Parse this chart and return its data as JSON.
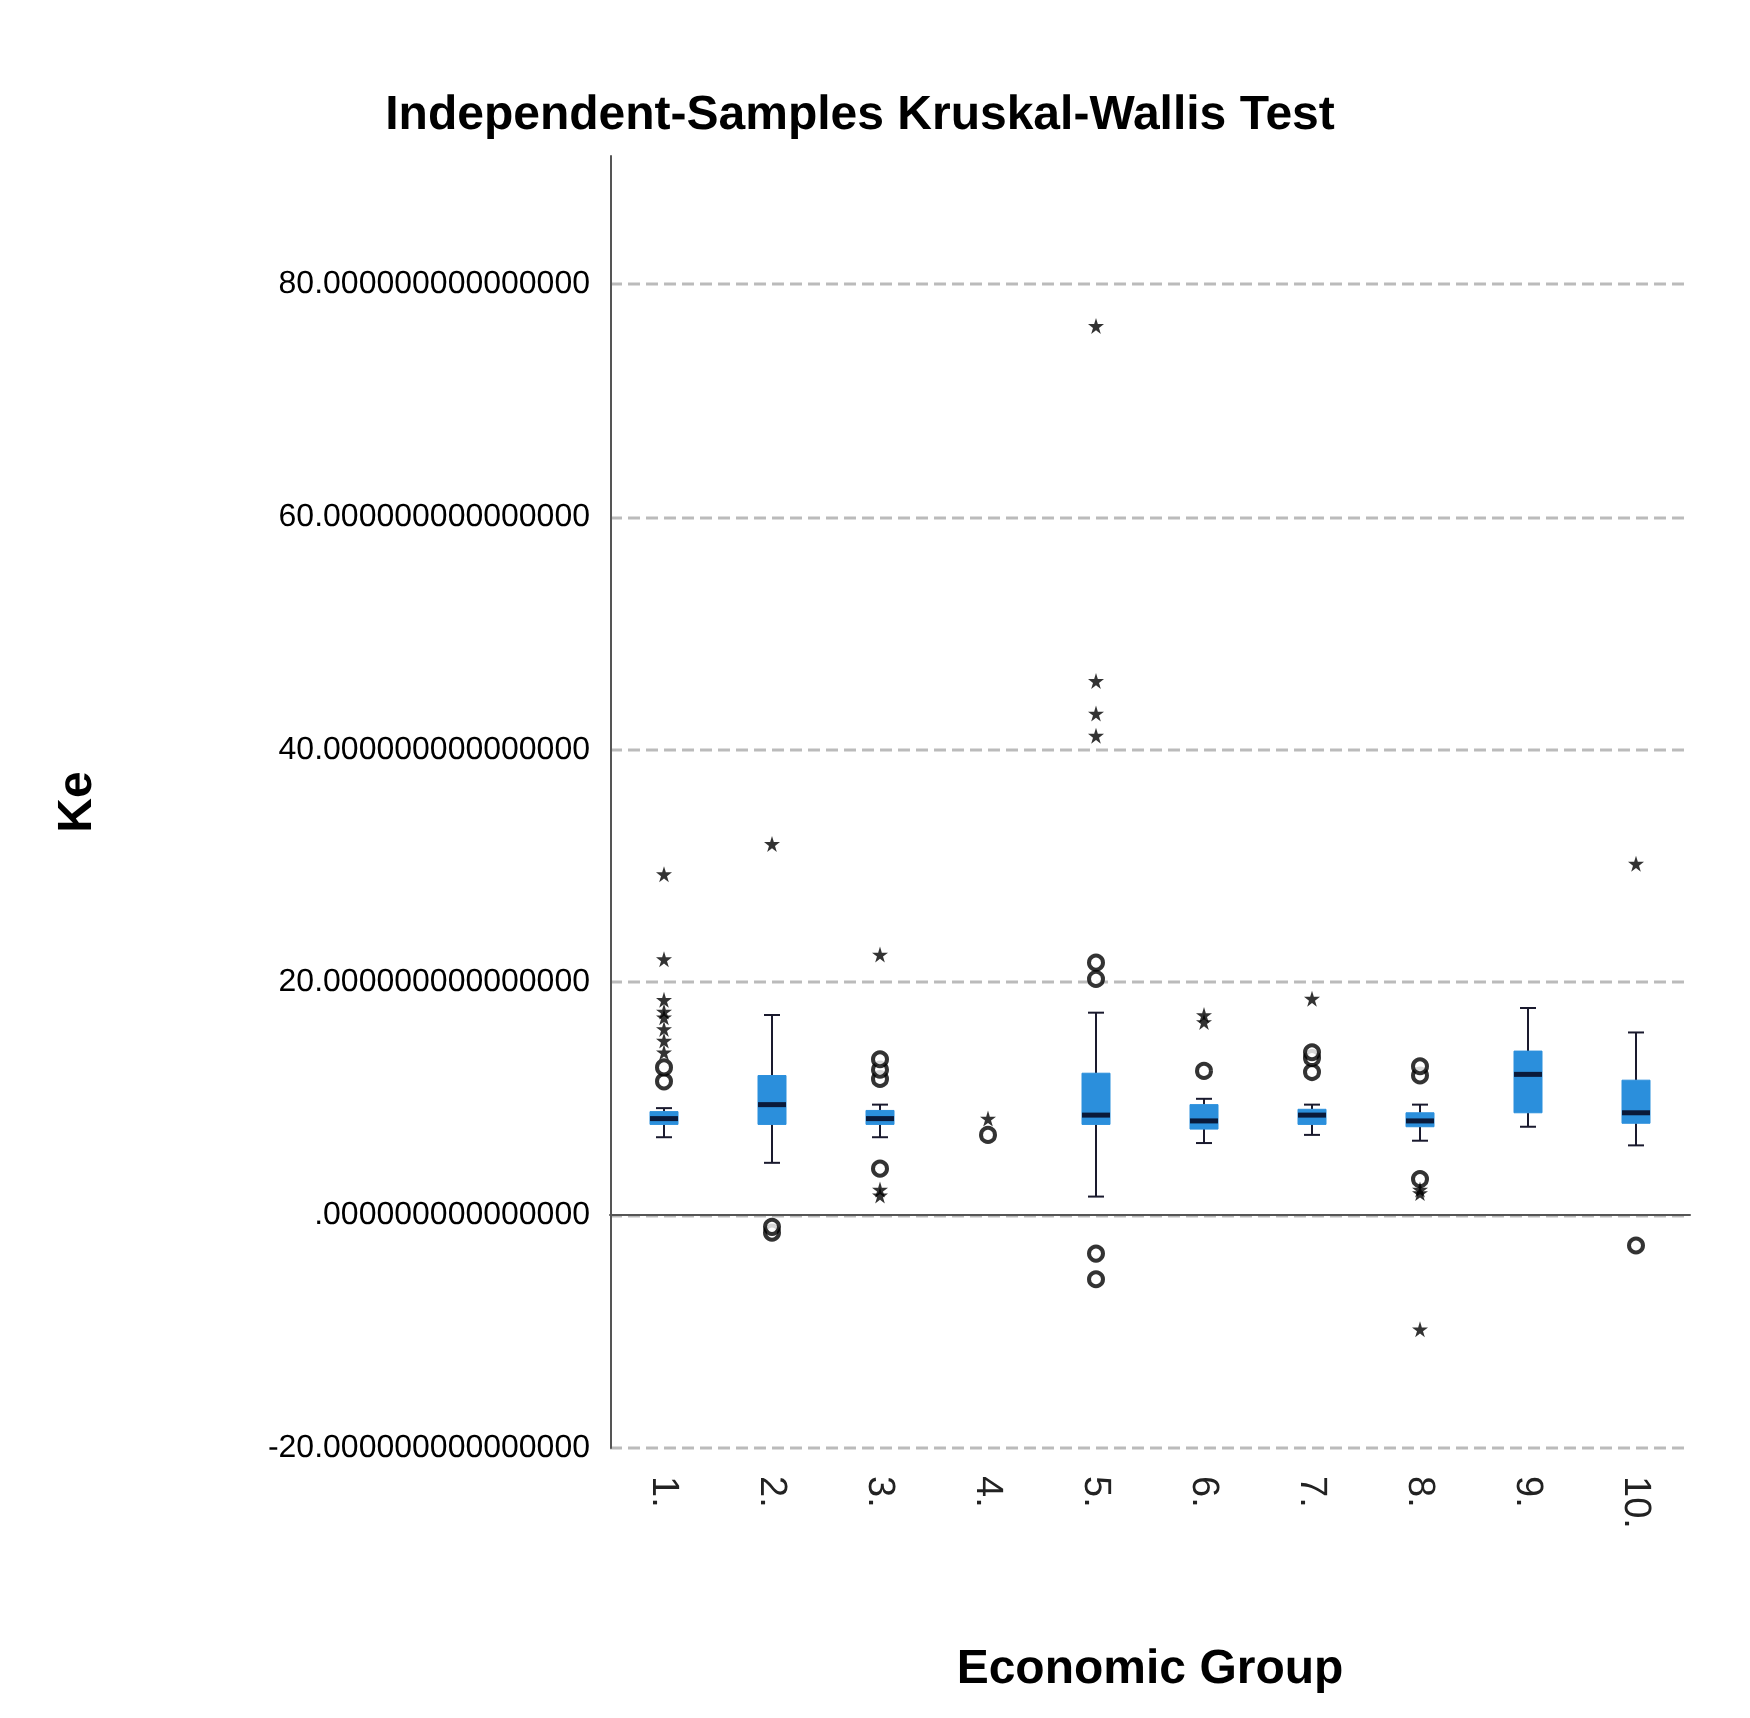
{
  "chart_data": {
    "type": "box",
    "title": "Independent-Samples Kruskal-Wallis Test",
    "xlabel": "Economic Group",
    "ylabel": "Ke",
    "categories": [
      "1.",
      "2.",
      "3.",
      "4.",
      "5.",
      "6.",
      "7.",
      "8.",
      "9.",
      "10."
    ],
    "color": "#2b8fdc",
    "boxes": [
      {
        "low": 6.7,
        "q1": 7.8,
        "median": 8.3,
        "q3": 8.9,
        "high": 9.2
      },
      {
        "low": 4.5,
        "q1": 7.8,
        "median": 9.5,
        "q3": 12.0,
        "high": 17.2
      },
      {
        "low": 6.7,
        "q1": 7.8,
        "median": 8.3,
        "q3": 9.0,
        "high": 9.5
      },
      null,
      {
        "low": 1.6,
        "q1": 7.8,
        "median": 8.6,
        "q3": 12.2,
        "high": 17.4
      },
      {
        "low": 6.2,
        "q1": 7.4,
        "median": 8.1,
        "q3": 9.5,
        "high": 10.0
      },
      {
        "low": 6.9,
        "q1": 7.8,
        "median": 8.6,
        "q3": 9.1,
        "high": 9.5
      },
      {
        "low": 6.4,
        "q1": 7.6,
        "median": 8.1,
        "q3": 8.8,
        "high": 9.5
      },
      {
        "low": 7.6,
        "q1": 8.8,
        "median": 12.1,
        "q3": 14.1,
        "high": 17.8
      },
      {
        "low": 6.0,
        "q1": 7.9,
        "median": 8.8,
        "q3": 11.6,
        "high": 15.7
      }
    ],
    "series": [
      {
        "type": "scatter",
        "marker": "circle",
        "color": "#000000",
        "x": [
          "1.",
          "1.",
          "2.",
          "2.",
          "3.",
          "3.",
          "3.",
          "3.",
          "4.",
          "5.",
          "5.",
          "5.",
          "5.",
          "6.",
          "7.",
          "7.",
          "7.",
          "8.",
          "8.",
          "8.",
          "10."
        ],
        "values": [
          11.5,
          12.7,
          -1.5,
          -1.0,
          4.0,
          11.7,
          12.5,
          13.4,
          6.9,
          21.7,
          20.3,
          -3.3,
          -5.5,
          12.4,
          12.3,
          13.5,
          14.0,
          3.1,
          12.0,
          12.8,
          -2.6
        ]
      },
      {
        "type": "scatter",
        "marker": "star",
        "color": "#000000",
        "x": [
          "1.",
          "1.",
          "1.",
          "1.",
          "1.",
          "1.",
          "1.",
          "1.",
          "2.",
          "3.",
          "3.",
          "3.",
          "4.",
          "5.",
          "5.",
          "5.",
          "5.",
          "6.",
          "6.",
          "7.",
          "8.",
          "8.",
          "8.",
          "10."
        ],
        "values": [
          14.0,
          15.0,
          16.0,
          17.0,
          17.5,
          18.5,
          22.0,
          29.3,
          31.9,
          1.7,
          2.2,
          22.4,
          8.3,
          76.4,
          45.9,
          43.1,
          41.2,
          16.6,
          17.2,
          18.6,
          1.9,
          2.2,
          -9.8,
          30.2
        ]
      }
    ],
    "ylim": [
      -20,
      91
    ],
    "yticks": [
      {
        "value": -20,
        "label": "-20.000000000000000"
      },
      {
        "value": 0,
        "label": ".000000000000000"
      },
      {
        "value": 20,
        "label": "20.000000000000000"
      },
      {
        "value": 40,
        "label": "40.000000000000000"
      },
      {
        "value": 60,
        "label": "60.000000000000000"
      },
      {
        "value": 80,
        "label": "80.000000000000000"
      }
    ],
    "grid": "y"
  }
}
